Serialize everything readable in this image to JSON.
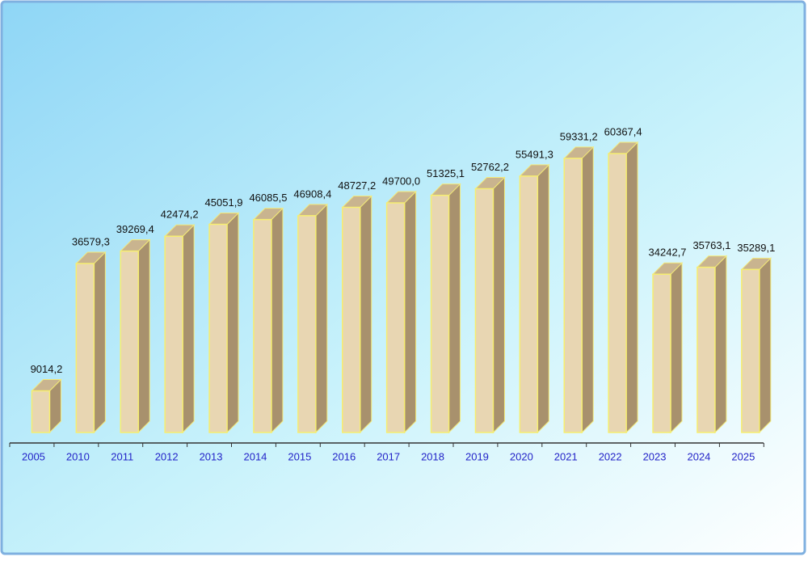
{
  "chart_data": {
    "type": "bar",
    "categories": [
      "2005",
      "2010",
      "2011",
      "2012",
      "2013",
      "2014",
      "2015",
      "2016",
      "2017",
      "2018",
      "2019",
      "2020",
      "2021",
      "2022",
      "2023",
      "2024",
      "2025"
    ],
    "values": [
      9014.2,
      36579.3,
      39269.4,
      42474.2,
      45051.9,
      46085.5,
      46908.4,
      48727.2,
      49700.0,
      51325.1,
      52762.2,
      55491.3,
      59331.2,
      60367.4,
      34242.7,
      35763.1,
      35289.1
    ],
    "value_labels": [
      "9014,2",
      "36579,3",
      "39269,4",
      "42474,2",
      "45051,9",
      "46085,5",
      "46908,4",
      "48727,2",
      "49700,0",
      "51325,1",
      "52762,2",
      "55491,3",
      "59331,2",
      "60367,4",
      "34242,7",
      "35763,1",
      "35289,1"
    ],
    "color": "#e8d6b2"
  }
}
